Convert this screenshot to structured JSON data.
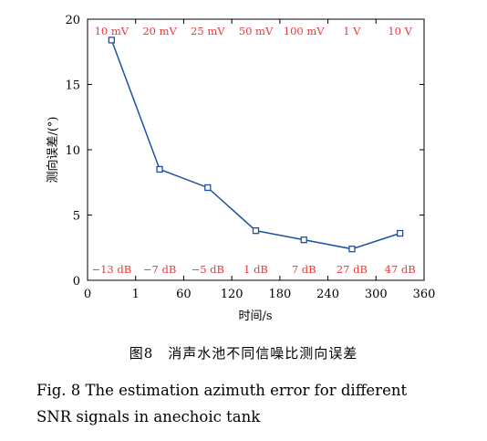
{
  "chart_data": {
    "type": "line",
    "xlabel": "时间/s",
    "ylabel": "测向误差/(°)",
    "x_tick_labels": [
      "0",
      "1",
      "60",
      "120",
      "180",
      "240",
      "300",
      "360"
    ],
    "y_tick_labels": [
      "0",
      "5",
      "10",
      "15",
      "20"
    ],
    "ylim": [
      0,
      20
    ],
    "grid": false,
    "series": [
      {
        "x": [
          "1",
          "60",
          "120",
          "180",
          "240",
          "300",
          "360"
        ],
        "values": [
          18.4,
          8.5,
          7.1,
          3.8,
          3.1,
          2.4,
          3.6
        ],
        "color": "#1f4fa3",
        "marker": "square"
      }
    ],
    "top_labels": [
      "10 mV",
      "20 mV",
      "25 mV",
      "50 mV",
      "100 mV",
      "1 V",
      "10 V"
    ],
    "bottom_labels": [
      "−13 dB",
      "−7 dB",
      "−5 dB",
      "1 dB",
      "7 dB",
      "27 dB",
      "47 dB"
    ],
    "label_color": "#e8393c"
  },
  "caption": {
    "cn": "图8　消声水池不同信噪比测向误差",
    "en_line1": "Fig. 8  The estimation azimuth error for different",
    "en_line2": "SNR signals in anechoic tank"
  }
}
